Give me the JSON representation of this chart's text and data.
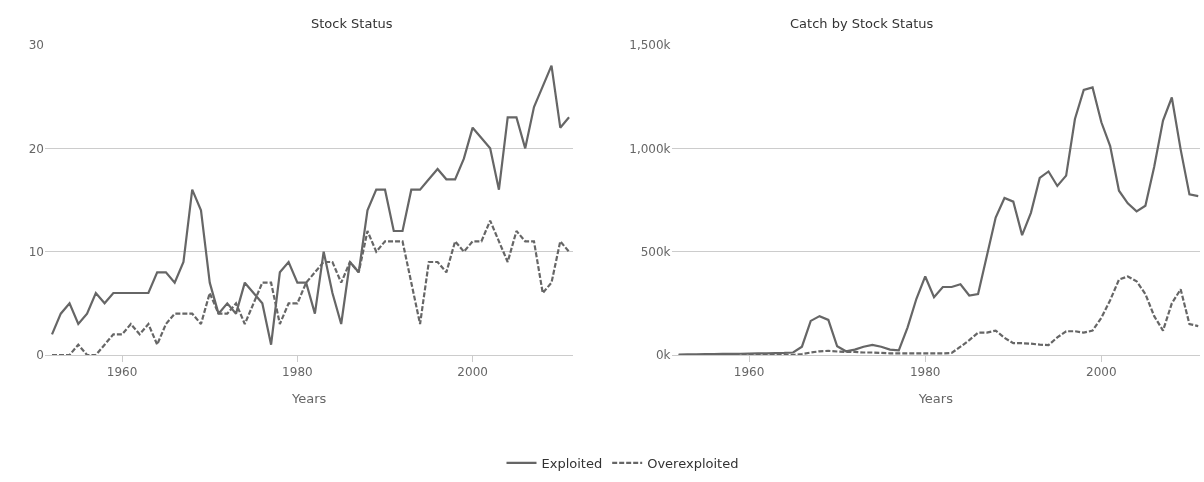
{
  "chart_data": [
    {
      "type": "line",
      "title": "Stock Status",
      "xlabel": "Years",
      "x": [
        1952,
        1953,
        1954,
        1955,
        1956,
        1957,
        1958,
        1959,
        1960,
        1961,
        1962,
        1963,
        1964,
        1965,
        1966,
        1967,
        1968,
        1969,
        1970,
        1971,
        1972,
        1973,
        1974,
        1975,
        1976,
        1977,
        1978,
        1979,
        1980,
        1981,
        1982,
        1983,
        1984,
        1985,
        1986,
        1987,
        1988,
        1989,
        1990,
        1991,
        1992,
        1993,
        1994,
        1995,
        1996,
        1997,
        1998,
        1999,
        2000,
        2001,
        2002,
        2003,
        2004,
        2005,
        2006,
        2007,
        2008,
        2009,
        2010,
        2011
      ],
      "series": [
        {
          "name": "Exploited",
          "color": "#666666",
          "line_style": "solid",
          "values": [
            2,
            4,
            5,
            3,
            4,
            6,
            5,
            6,
            6,
            6,
            6,
            6,
            8,
            8,
            7,
            9,
            16,
            14,
            7,
            4,
            5,
            4,
            7,
            6,
            5,
            1,
            8,
            9,
            7,
            7,
            4,
            10,
            6,
            3,
            9,
            8,
            14,
            16,
            16,
            12,
            12,
            16,
            16,
            17,
            18,
            17,
            17,
            19,
            22,
            21,
            20,
            16,
            23,
            23,
            20,
            24,
            26,
            28,
            22,
            23
          ]
        },
        {
          "name": "Overexploited",
          "color": "#666666",
          "line_style": "dashed",
          "values": [
            0,
            0,
            0,
            1,
            0,
            0,
            1,
            2,
            2,
            3,
            2,
            3,
            1,
            3,
            4,
            4,
            4,
            3,
            6,
            4,
            4,
            5,
            3,
            5,
            7,
            7,
            3,
            5,
            5,
            7,
            8,
            9,
            9,
            7,
            9,
            8,
            12,
            10,
            11,
            11,
            11,
            7,
            3,
            9,
            9,
            8,
            11,
            10,
            11,
            11,
            13,
            11,
            9,
            12,
            11,
            11,
            6,
            7,
            11,
            10
          ]
        }
      ],
      "xlim": [
        1951.2,
        2011.5
      ],
      "xticks": [
        1960,
        1980,
        2000
      ],
      "ylim": [
        0,
        30
      ],
      "yticks": [
        0,
        10,
        20,
        30
      ],
      "grid": "y",
      "legend": "bottom",
      "marker": "none"
    },
    {
      "type": "line",
      "title": "Catch by Stock Status",
      "xlabel": "Years",
      "x": [
        1952,
        1953,
        1954,
        1955,
        1956,
        1957,
        1958,
        1959,
        1960,
        1961,
        1962,
        1963,
        1964,
        1965,
        1966,
        1967,
        1968,
        1969,
        1970,
        1971,
        1972,
        1973,
        1974,
        1975,
        1976,
        1977,
        1978,
        1979,
        1980,
        1981,
        1982,
        1983,
        1984,
        1985,
        1986,
        1987,
        1988,
        1989,
        1990,
        1991,
        1992,
        1993,
        1994,
        1995,
        1996,
        1997,
        1998,
        1999,
        2000,
        2001,
        2002,
        2003,
        2004,
        2005,
        2006,
        2007,
        2008,
        2009,
        2010,
        2011
      ],
      "series": [
        {
          "name": "Exploited",
          "color": "#666666",
          "line_style": "solid",
          "values": [
            2000,
            3000,
            3000,
            4000,
            4000,
            5000,
            5000,
            6000,
            7000,
            8000,
            8000,
            9000,
            10000,
            12000,
            40000,
            165000,
            188000,
            170000,
            42000,
            18000,
            26000,
            40000,
            49000,
            40000,
            26000,
            22000,
            134000,
            272000,
            380000,
            280000,
            329000,
            329000,
            342000,
            288000,
            295000,
            480000,
            665000,
            760000,
            742000,
            580000,
            688000,
            857000,
            888000,
            818000,
            868000,
            1142000,
            1283000,
            1295000,
            1126000,
            1011000,
            795000,
            734000,
            695000,
            722000,
            911000,
            1134000,
            1246000,
            995000,
            777000,
            769000
          ]
        },
        {
          "name": "Overexploited",
          "color": "#666666",
          "line_style": "dashed",
          "values": [
            0,
            0,
            0,
            0,
            0,
            0,
            0,
            0,
            0,
            0,
            0,
            0,
            0,
            0,
            5000,
            12000,
            18000,
            20000,
            17000,
            15000,
            15000,
            12000,
            12000,
            10000,
            8000,
            8000,
            8000,
            8000,
            8000,
            8000,
            8000,
            10000,
            40000,
            72000,
            108000,
            108000,
            118000,
            83000,
            57000,
            57000,
            55000,
            50000,
            48000,
            85000,
            115000,
            115000,
            108000,
            118000,
            180000,
            265000,
            365000,
            380000,
            357000,
            295000,
            188000,
            118000,
            250000,
            318000,
            150000,
            140000
          ]
        }
      ],
      "xlim": [
        1951.2,
        2011.2
      ],
      "xticks": [
        1960,
        1980,
        2000
      ],
      "ylim": [
        0,
        1500000
      ],
      "yticks": [
        {
          "value": 0,
          "label": "0k"
        },
        {
          "value": 500000,
          "label": "500k"
        },
        {
          "value": 1000000,
          "label": "1,000k"
        },
        {
          "value": 1500000,
          "label": "1,500k"
        }
      ],
      "grid": "y",
      "legend": "bottom",
      "marker": "none"
    }
  ]
}
